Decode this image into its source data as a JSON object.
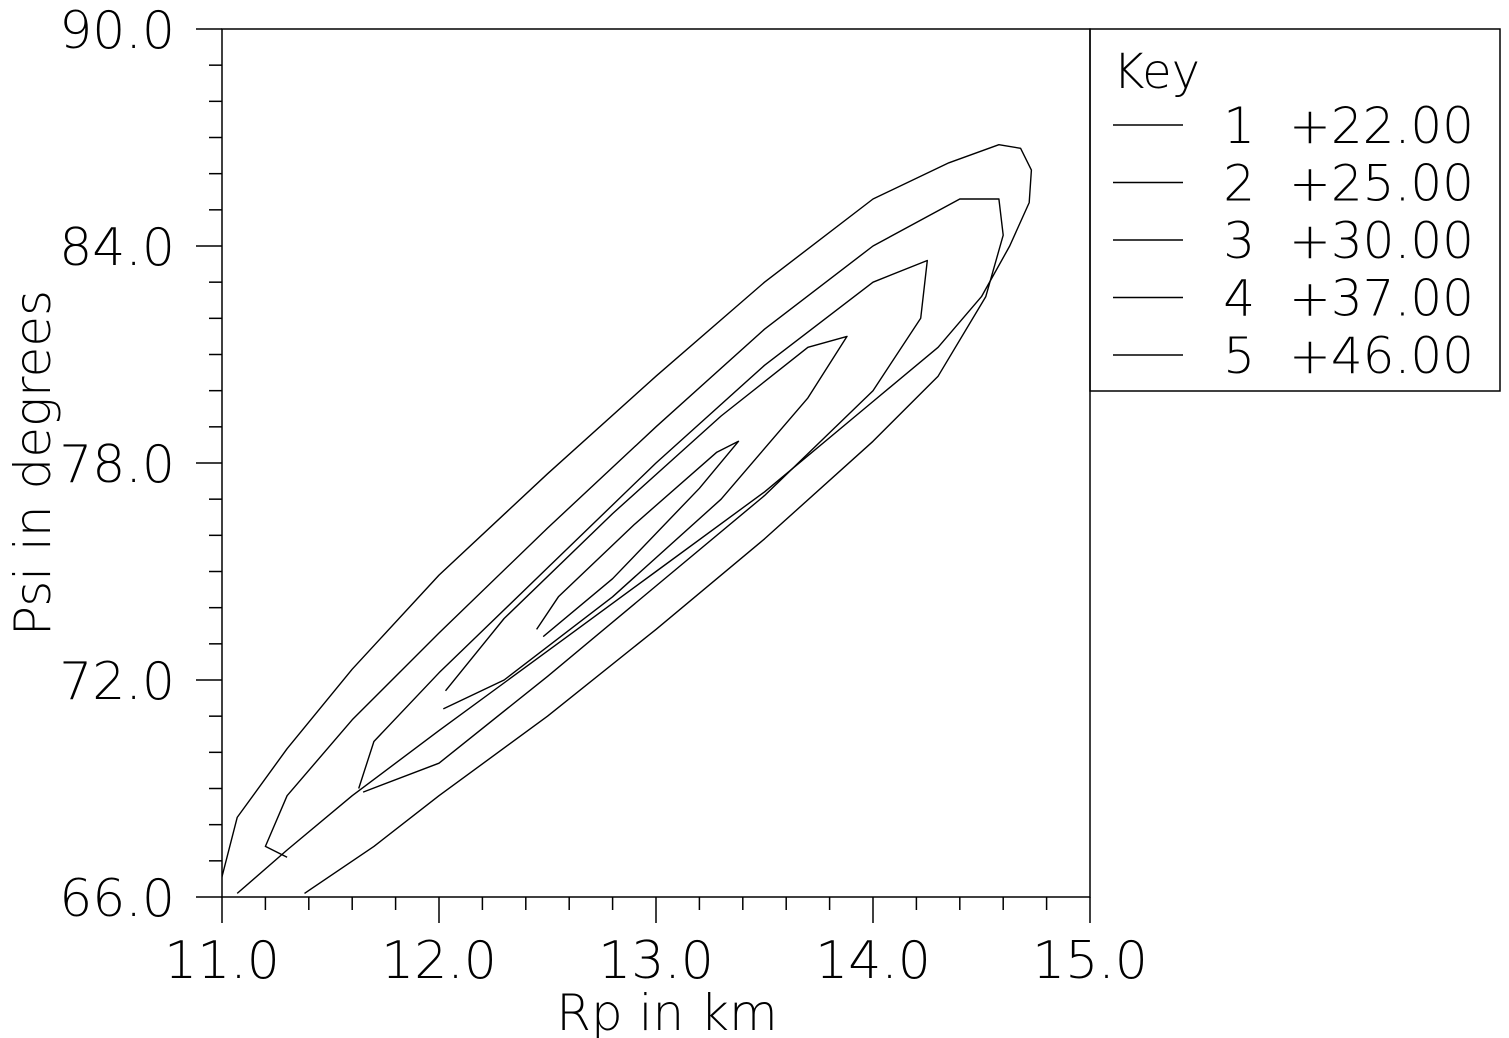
{
  "chart_data": {
    "type": "contour",
    "xlabel": "Rp in km",
    "ylabel": "Psi in degrees",
    "xlim": [
      11.0,
      15.0
    ],
    "ylim": [
      66.0,
      90.0
    ],
    "x_ticks": [
      11.0,
      12.0,
      13.0,
      14.0,
      15.0
    ],
    "x_tick_labels": [
      "11.0",
      "12.0",
      "13.0",
      "14.0",
      "15.0"
    ],
    "y_ticks": [
      66.0,
      72.0,
      78.0,
      84.0,
      90.0
    ],
    "y_tick_labels": [
      "66.0",
      "72.0",
      "78.0",
      "84.0",
      "90.0"
    ],
    "x_minor_step": 0.2,
    "y_minor_step": 1.0,
    "grid": false,
    "legend": {
      "title": "Key",
      "placement": "right-top",
      "entries": [
        {
          "index": "1",
          "value": "+22.00"
        },
        {
          "index": "2",
          "value": "+25.00"
        },
        {
          "index": "3",
          "value": "+30.00"
        },
        {
          "index": "4",
          "value": "+37.00"
        },
        {
          "index": "5",
          "value": "+46.00"
        }
      ]
    },
    "contours": [
      {
        "level": 22.0,
        "points": [
          [
            11.07,
            66.1
          ],
          [
            11.3,
            67.3
          ],
          [
            11.6,
            68.8
          ],
          [
            12.0,
            70.6
          ],
          [
            12.5,
            72.8
          ],
          [
            13.0,
            75.0
          ],
          [
            13.5,
            77.2
          ],
          [
            14.0,
            79.7
          ],
          [
            14.3,
            81.2
          ],
          [
            14.5,
            82.6
          ],
          [
            14.63,
            84.0
          ],
          [
            14.72,
            85.2
          ],
          [
            14.73,
            86.1
          ],
          [
            14.68,
            86.7
          ],
          [
            14.58,
            86.8
          ],
          [
            14.35,
            86.3
          ],
          [
            14.0,
            85.3
          ],
          [
            13.5,
            83.0
          ],
          [
            13.0,
            80.4
          ],
          [
            12.5,
            77.7
          ],
          [
            12.0,
            74.9
          ],
          [
            11.6,
            72.3
          ],
          [
            11.3,
            70.1
          ],
          [
            11.07,
            68.2
          ],
          [
            10.98,
            66.1
          ]
        ]
      },
      {
        "level": 25.0,
        "points": [
          [
            11.38,
            66.1
          ],
          [
            11.7,
            67.4
          ],
          [
            12.0,
            68.8
          ],
          [
            12.5,
            71.0
          ],
          [
            13.0,
            73.4
          ],
          [
            13.5,
            75.9
          ],
          [
            14.0,
            78.6
          ],
          [
            14.3,
            80.4
          ],
          [
            14.52,
            82.6
          ],
          [
            14.6,
            84.3
          ],
          [
            14.58,
            85.3
          ],
          [
            14.4,
            85.3
          ],
          [
            14.0,
            84.0
          ],
          [
            13.5,
            81.7
          ],
          [
            13.0,
            79.0
          ],
          [
            12.5,
            76.2
          ],
          [
            12.0,
            73.3
          ],
          [
            11.6,
            70.9
          ],
          [
            11.3,
            68.8
          ],
          [
            11.2,
            67.4
          ],
          [
            11.3,
            67.1
          ]
        ]
      },
      {
        "level": 30.0,
        "points": [
          [
            11.65,
            68.9
          ],
          [
            12.0,
            69.7
          ],
          [
            12.5,
            72.1
          ],
          [
            13.0,
            74.6
          ],
          [
            13.5,
            77.1
          ],
          [
            14.0,
            80.0
          ],
          [
            14.22,
            82.0
          ],
          [
            14.25,
            83.6
          ],
          [
            14.0,
            83.0
          ],
          [
            13.5,
            80.7
          ],
          [
            13.0,
            78.0
          ],
          [
            12.5,
            75.1
          ],
          [
            12.0,
            72.2
          ],
          [
            11.7,
            70.3
          ],
          [
            11.63,
            69.0
          ]
        ]
      },
      {
        "level": 37.0,
        "points": [
          [
            12.02,
            71.2
          ],
          [
            12.3,
            72.0
          ],
          [
            12.8,
            74.3
          ],
          [
            13.3,
            77.0
          ],
          [
            13.7,
            79.8
          ],
          [
            13.88,
            81.5
          ],
          [
            13.7,
            81.2
          ],
          [
            13.3,
            79.3
          ],
          [
            12.8,
            76.6
          ],
          [
            12.3,
            73.7
          ],
          [
            12.03,
            71.7
          ]
        ]
      },
      {
        "level": 46.0,
        "points": [
          [
            12.48,
            73.2
          ],
          [
            12.8,
            74.8
          ],
          [
            13.2,
            77.3
          ],
          [
            13.38,
            78.6
          ],
          [
            13.28,
            78.3
          ],
          [
            12.9,
            76.3
          ],
          [
            12.55,
            74.3
          ],
          [
            12.45,
            73.4
          ]
        ]
      }
    ]
  }
}
